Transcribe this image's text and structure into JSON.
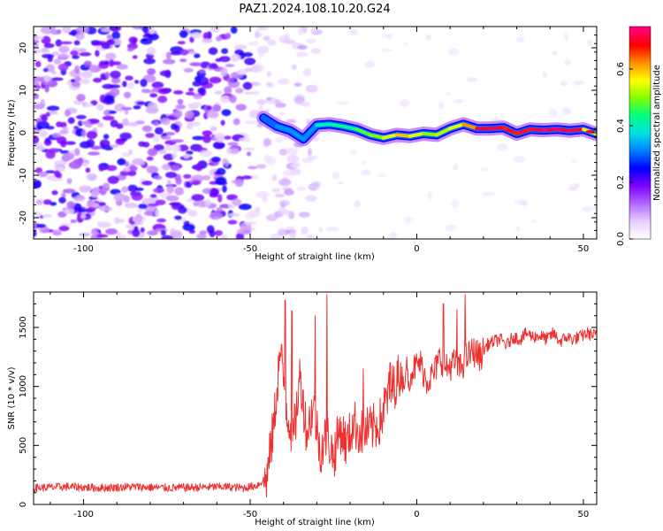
{
  "title": "PAZ1.2024.108.10.20.G24",
  "chart_data": [
    {
      "type": "heatmap",
      "xlabel": "Height of straight line (km)",
      "ylabel": "Frequency (Hz)",
      "xlim": [
        -115,
        54
      ],
      "ylim": [
        -25,
        25
      ],
      "xticks": [
        -100,
        -50,
        0,
        50
      ],
      "yticks": [
        -20,
        -10,
        0,
        10,
        20
      ],
      "colorbar": {
        "label": "Normalized spectral amplitude",
        "range": [
          0,
          0.75
        ],
        "ticks": [
          "0.0",
          "0.2",
          "0.4",
          "0.6"
        ],
        "colors": [
          "#ffffff",
          "#e6ccff",
          "#b266ff",
          "#8000ff",
          "#0000ff",
          "#0080ff",
          "#00e0e0",
          "#00ff80",
          "#80ff00",
          "#ffff00",
          "#ff9000",
          "#ff0000",
          "#ff0080"
        ]
      },
      "ridge": {
        "x": [
          -46,
          -42,
          -38,
          -34,
          -30,
          -26,
          -22,
          -18,
          -14,
          -10,
          -6,
          -2,
          2,
          6,
          10,
          14,
          18,
          22,
          26,
          30,
          34,
          38,
          42,
          46,
          50,
          54
        ],
        "y": [
          3.5,
          1.5,
          0.5,
          -1.5,
          1.8,
          2.0,
          1.5,
          0.8,
          -0.5,
          -1.2,
          -0.5,
          -0.8,
          -0.2,
          -0.5,
          1.0,
          2.0,
          1.0,
          1.0,
          1.2,
          -0.2,
          0.8,
          0.6,
          0.8,
          0.5,
          0.8,
          -0.3
        ],
        "amplitude": [
          0.25,
          0.25,
          0.3,
          0.25,
          0.3,
          0.4,
          0.35,
          0.4,
          0.45,
          0.45,
          0.55,
          0.55,
          0.45,
          0.45,
          0.5,
          0.5,
          0.65,
          0.7,
          0.65,
          0.6,
          0.65,
          0.7,
          0.7,
          0.7,
          0.65,
          0.4
        ]
      }
    },
    {
      "type": "line",
      "xlabel": "Height of straight line (km)",
      "ylabel": "SNR (10 * v/v)",
      "xlim": [
        -115,
        54
      ],
      "ylim": [
        0,
        1800
      ],
      "xticks": [
        -100,
        -50,
        0,
        50
      ],
      "yticks": [
        0,
        500,
        1000,
        1500
      ],
      "series": [
        {
          "color": "#ee3030",
          "x": [
            -115,
            -105,
            -95,
            -85,
            -75,
            -65,
            -58,
            -52,
            -48,
            -45,
            -43,
            -41,
            -39,
            -37,
            -35,
            -33,
            -31,
            -29,
            -27,
            -25,
            -23,
            -21,
            -19,
            -17,
            -15,
            -13,
            -11,
            -9,
            -7,
            -5,
            -3,
            -1,
            1,
            3,
            5,
            7,
            9,
            11,
            13,
            15,
            17,
            19,
            21,
            23,
            25,
            27,
            29,
            31,
            33,
            35,
            37,
            39,
            41,
            43,
            45,
            47,
            49,
            51,
            54
          ],
          "y": [
            140,
            150,
            140,
            150,
            140,
            145,
            150,
            140,
            160,
            230,
            650,
            1300,
            800,
            550,
            1100,
            600,
            850,
            450,
            600,
            400,
            650,
            500,
            700,
            600,
            620,
            650,
            700,
            900,
            1000,
            1100,
            1050,
            1150,
            1200,
            1050,
            1100,
            1250,
            1150,
            1200,
            1150,
            1250,
            1300,
            1250,
            1350,
            1380,
            1400,
            1350,
            1420,
            1400,
            1450,
            1420,
            1430,
            1400,
            1450,
            1380,
            1420,
            1400,
            1420,
            1450,
            1430
          ]
        }
      ],
      "spikes": {
        "x": [
          -39.5,
          -37.5,
          -30.5,
          -27,
          -16,
          -8,
          -3,
          8,
          12,
          14.5
        ],
        "y": [
          1730,
          1640,
          1600,
          1780,
          1150,
          1200,
          1250,
          1700,
          1650,
          1780
        ]
      }
    }
  ]
}
